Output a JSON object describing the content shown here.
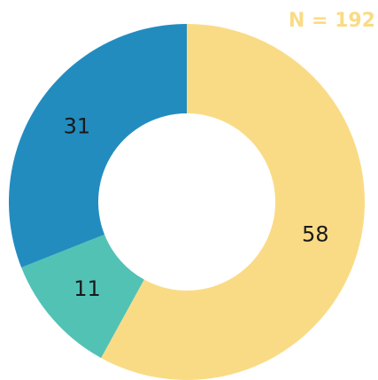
{
  "chart_data": {
    "type": "donut",
    "annotation": "N = 192",
    "annotation_color": "#FADB85",
    "categories": [
      null,
      null,
      null
    ],
    "values": [
      58,
      11,
      31
    ],
    "colors": [
      "#FADB85",
      "#52C2B5",
      "#238CBF"
    ]
  }
}
